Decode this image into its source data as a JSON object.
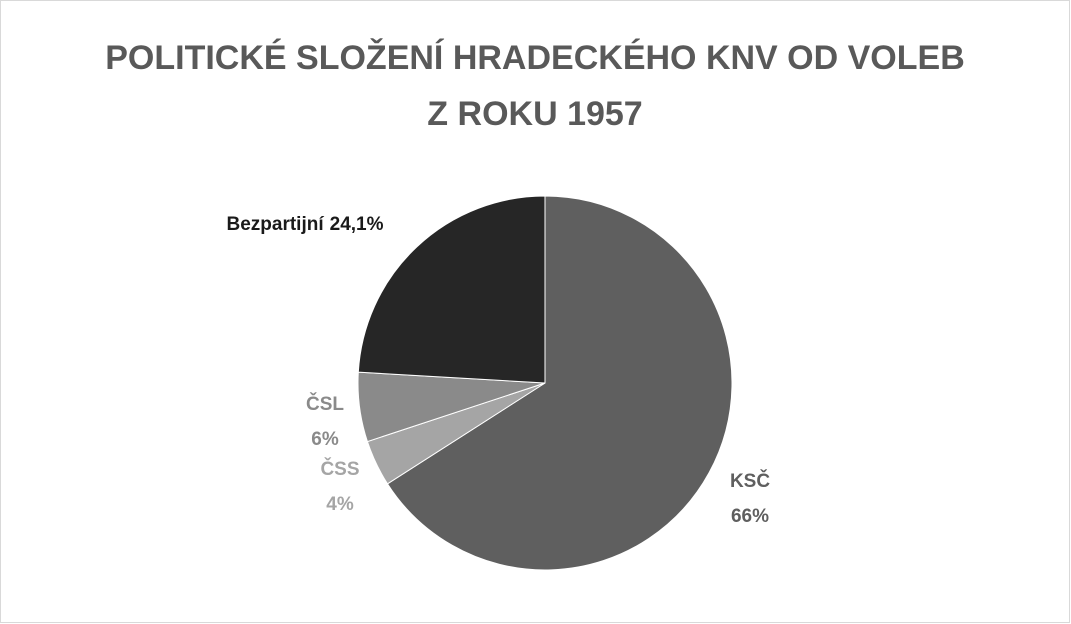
{
  "chart_data": {
    "type": "pie",
    "title": "POLITICKÉ SLOŽENÍ HRADECKÉHO KNV OD VOLEB Z ROKU 1957",
    "categories": [
      "KSČ",
      "ČSS",
      "ČSL",
      "Bezpartijní"
    ],
    "values": [
      66,
      4,
      6,
      24.1
    ],
    "value_labels": [
      "66%",
      "4%",
      "6%",
      "24,1%"
    ],
    "colors": [
      "#5f5f5f",
      "#a5a5a5",
      "#8a8a8a",
      "#262626"
    ]
  }
}
